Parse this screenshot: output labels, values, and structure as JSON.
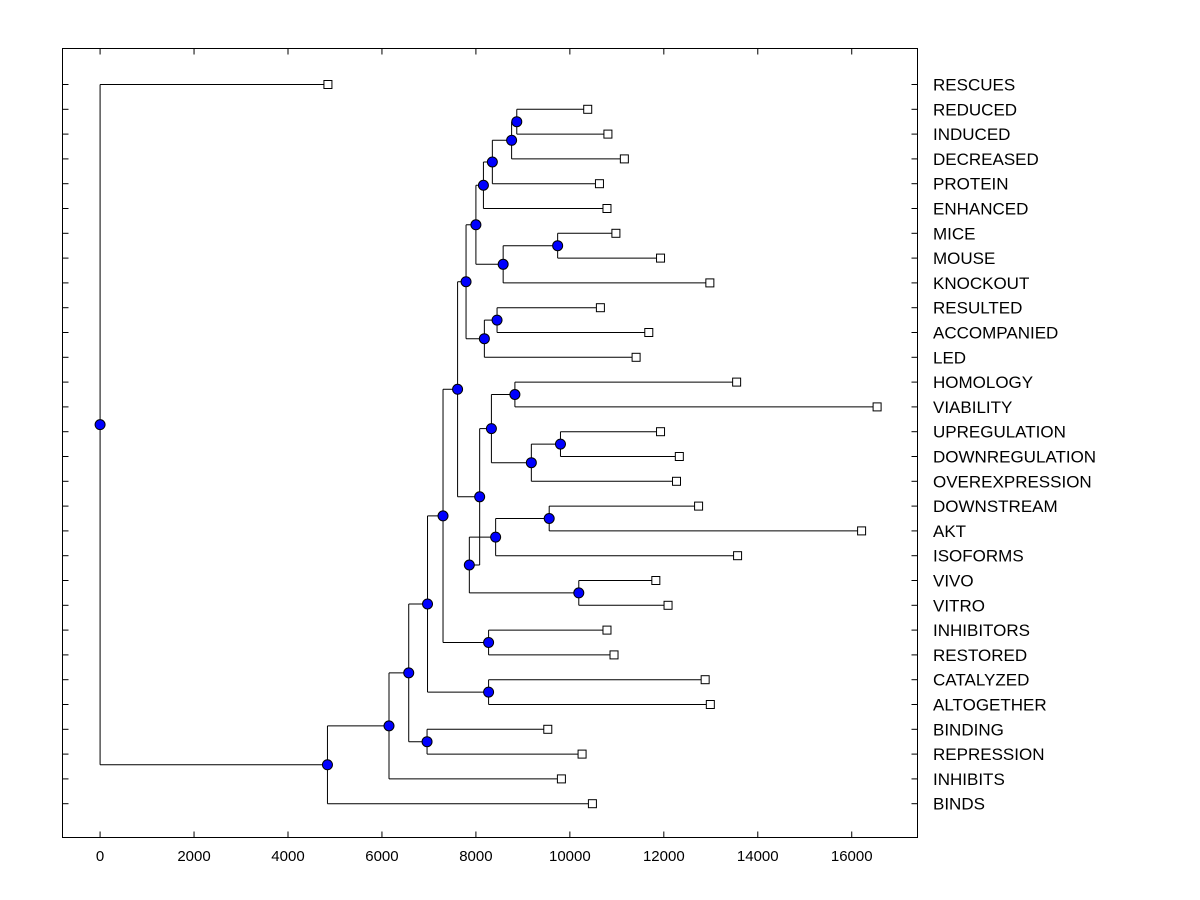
{
  "chart_data": {
    "type": "dendrogram",
    "xlim": [
      -800,
      17400
    ],
    "xticks": [
      0,
      2000,
      4000,
      6000,
      8000,
      10000,
      12000,
      14000,
      16000
    ],
    "colors": {
      "node": "#0000ff",
      "line": "#000000",
      "leaf": "#ffffff"
    },
    "leaves": [
      {
        "label": "RESCUES",
        "x": 4850
      },
      {
        "label": "REDUCED",
        "x": 10380
      },
      {
        "label": "INDUCED",
        "x": 10810
      },
      {
        "label": "DECREASED",
        "x": 11160
      },
      {
        "label": "PROTEIN",
        "x": 10630
      },
      {
        "label": "ENHANCED",
        "x": 10790
      },
      {
        "label": "MICE",
        "x": 10980
      },
      {
        "label": "MOUSE",
        "x": 11930
      },
      {
        "label": "KNOCKOUT",
        "x": 12980
      },
      {
        "label": "RESULTED",
        "x": 10650
      },
      {
        "label": "ACCOMPANIED",
        "x": 11680
      },
      {
        "label": "LED",
        "x": 11410
      },
      {
        "label": "HOMOLOGY",
        "x": 13550
      },
      {
        "label": "VIABILITY",
        "x": 16540
      },
      {
        "label": "UPREGULATION",
        "x": 11930
      },
      {
        "label": "DOWNREGULATION",
        "x": 12330
      },
      {
        "label": "OVEREXPRESSION",
        "x": 12270
      },
      {
        "label": "DOWNSTREAM",
        "x": 12740
      },
      {
        "label": "AKT",
        "x": 16210
      },
      {
        "label": "ISOFORMS",
        "x": 13570
      },
      {
        "label": "VIVO",
        "x": 11830
      },
      {
        "label": "VITRO",
        "x": 12090
      },
      {
        "label": "INHIBITORS",
        "x": 10790
      },
      {
        "label": "RESTORED",
        "x": 10940
      },
      {
        "label": "CATALYZED",
        "x": 12880
      },
      {
        "label": "ALTOGETHER",
        "x": 12990
      },
      {
        "label": "BINDING",
        "x": 9530
      },
      {
        "label": "REPRESSION",
        "x": 10260
      },
      {
        "label": "INHIBITS",
        "x": 9820
      },
      {
        "label": "BINDS",
        "x": 10480
      }
    ],
    "merges": [
      {
        "id": "n1",
        "x": 8870,
        "children": [
          "L1",
          "L2"
        ]
      },
      {
        "id": "n2",
        "x": 8760,
        "children": [
          "n1",
          "L3"
        ]
      },
      {
        "id": "n3",
        "x": 8350,
        "children": [
          "n2",
          "L4"
        ]
      },
      {
        "id": "n4",
        "x": 8160,
        "children": [
          "n3",
          "L5"
        ]
      },
      {
        "id": "n5",
        "x": 9740,
        "children": [
          "L6",
          "L7"
        ]
      },
      {
        "id": "n6",
        "x": 8580,
        "children": [
          "n5",
          "L8"
        ]
      },
      {
        "id": "n7",
        "x": 8000,
        "children": [
          "n4",
          "n6"
        ]
      },
      {
        "id": "n8",
        "x": 8450,
        "children": [
          "L9",
          "L10"
        ]
      },
      {
        "id": "n9",
        "x": 8180,
        "children": [
          "n8",
          "L11"
        ]
      },
      {
        "id": "n10",
        "x": 7790,
        "children": [
          "n7",
          "n9"
        ]
      },
      {
        "id": "n11",
        "x": 8830,
        "children": [
          "L12",
          "L13"
        ]
      },
      {
        "id": "n12",
        "x": 9800,
        "children": [
          "L14",
          "L15"
        ]
      },
      {
        "id": "n13",
        "x": 9180,
        "children": [
          "n12",
          "L16"
        ]
      },
      {
        "id": "n14",
        "x": 8330,
        "children": [
          "n11",
          "n13"
        ]
      },
      {
        "id": "n15",
        "x": 9560,
        "children": [
          "L17",
          "L18"
        ]
      },
      {
        "id": "n16",
        "x": 8420,
        "children": [
          "n15",
          "L19"
        ]
      },
      {
        "id": "n17",
        "x": 10190,
        "children": [
          "L20",
          "L21"
        ]
      },
      {
        "id": "n18",
        "x": 7860,
        "children": [
          "n16",
          "n17"
        ]
      },
      {
        "id": "n19",
        "x": 8080,
        "children": [
          "n14",
          "n18"
        ]
      },
      {
        "id": "n20",
        "x": 7610,
        "children": [
          "n10",
          "n19"
        ]
      },
      {
        "id": "n21",
        "x": 8270,
        "children": [
          "L22",
          "L23"
        ]
      },
      {
        "id": "n22",
        "x": 7300,
        "children": [
          "n20",
          "n21"
        ]
      },
      {
        "id": "n23",
        "x": 8270,
        "children": [
          "L24",
          "L25"
        ]
      },
      {
        "id": "n24",
        "x": 6970,
        "children": [
          "n22",
          "n23"
        ]
      },
      {
        "id": "n25",
        "x": 6960,
        "children": [
          "L26",
          "L27"
        ]
      },
      {
        "id": "n26",
        "x": 6570,
        "children": [
          "n24",
          "n25"
        ]
      },
      {
        "id": "n27",
        "x": 6150,
        "children": [
          "n26",
          "L28"
        ]
      },
      {
        "id": "n28",
        "x": 4840,
        "children": [
          "n27",
          "L29"
        ]
      },
      {
        "id": "n29",
        "x": 0,
        "children": [
          "L0",
          "n28"
        ]
      }
    ]
  }
}
